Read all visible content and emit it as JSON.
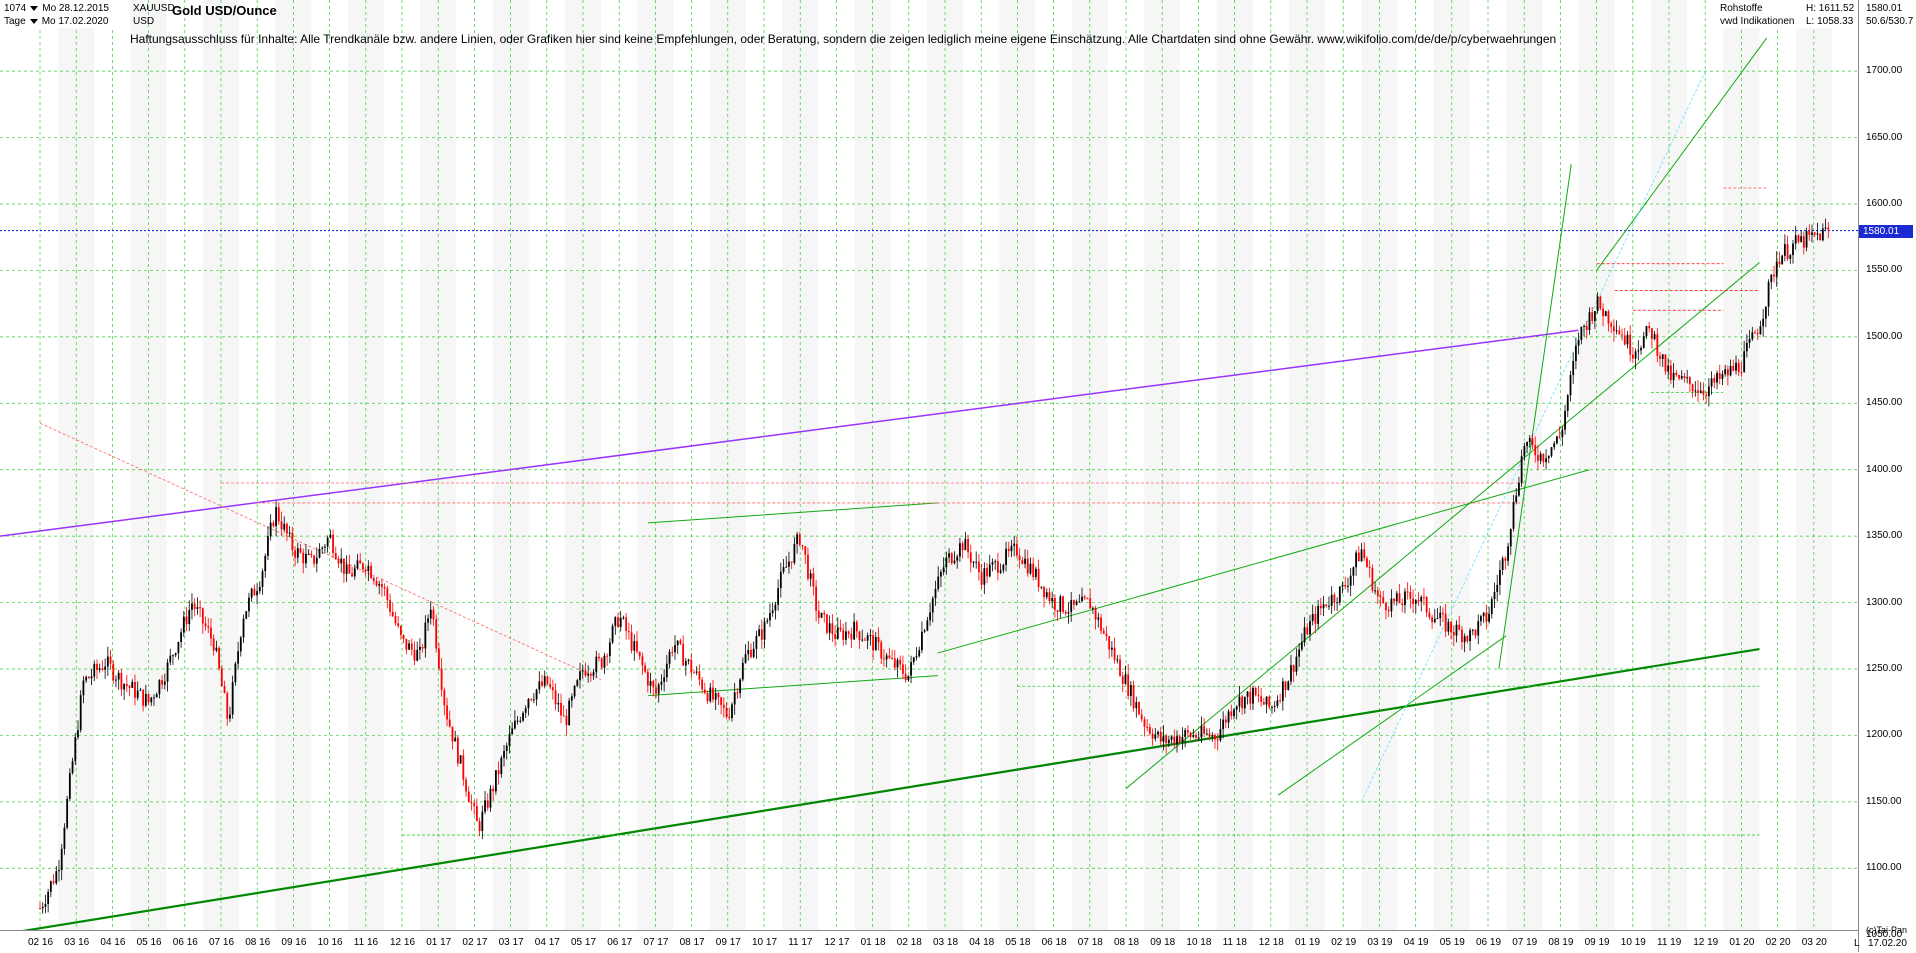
{
  "header": {
    "bars_count": "1074",
    "start_date": "Mo 28.12.2015",
    "period": "Tage",
    "end_date": "Mo 17.02.2020",
    "symbol": "XAUUSD",
    "currency": "USD",
    "title": "Gold USD/Ounce",
    "category": "Rohstoffe",
    "source": "vwd Indikationen",
    "high_label": "H: 1611.52",
    "low_label": "L: 1058.33",
    "last_value": "1580.01",
    "ma_values": "50.6/530.7"
  },
  "disclaimer": "Haftungsausschluss für Inhalte: Alle Trendkanäle bzw. andere Linien, oder Grafiken hier sind keine Empfehlungen, oder Beratung, sondern die zeigen lediglich meine eigene Einschätzung. Alle Chartdaten sind ohne Gewähr.  www.wikifolio.com/de/de/p/cyberwaehrungen",
  "footer": {
    "copyright": "(c)Tai-Pan",
    "mode": "L",
    "date": "17.02.20"
  },
  "colors": {
    "up": "#000000",
    "down": "#ff0000",
    "grid": "#33cc33",
    "current_line": "#1c2bd1",
    "purple": "#9933ff",
    "green_dark": "#008800",
    "cyan": "#66ddff",
    "orange": "#ff8800"
  },
  "chart_data": {
    "type": "candlestick",
    "title": "Gold USD/Ounce",
    "ylabel": "USD",
    "ylim": [
      1040,
      1740
    ],
    "y_ticks": [
      1050,
      1100,
      1150,
      1200,
      1250,
      1300,
      1350,
      1400,
      1450,
      1500,
      1550,
      1600,
      1650,
      1700
    ],
    "x_ticks": [
      "02 16",
      "03 16",
      "04 16",
      "05 16",
      "06 16",
      "07 16",
      "08 16",
      "09 16",
      "10 16",
      "11 16",
      "12 16",
      "01 17",
      "02 17",
      "03 17",
      "04 17",
      "05 17",
      "06 17",
      "07 17",
      "08 17",
      "09 17",
      "10 17",
      "11 17",
      "12 17",
      "01 18",
      "02 18",
      "03 18",
      "04 18",
      "05 18",
      "06 18",
      "07 18",
      "08 18",
      "09 18",
      "10 18",
      "11 18",
      "12 18",
      "01 19",
      "02 19",
      "03 19",
      "04 19",
      "05 19",
      "06 19",
      "07 19",
      "08 19",
      "09 19",
      "10 19",
      "11 19",
      "12 19",
      "01 20",
      "02 20",
      "03 20"
    ],
    "current_price": 1580.01,
    "price_path": [
      [
        0,
        1070
      ],
      [
        0.5,
        1100
      ],
      [
        1.2,
        1240
      ],
      [
        1.8,
        1255
      ],
      [
        2.3,
        1240
      ],
      [
        3,
        1225
      ],
      [
        3.5,
        1250
      ],
      [
        4.2,
        1300
      ],
      [
        4.8,
        1270
      ],
      [
        5.2,
        1210
      ],
      [
        5.6,
        1290
      ],
      [
        6.1,
        1320
      ],
      [
        6.5,
        1370
      ],
      [
        7,
        1340
      ],
      [
        7.5,
        1330
      ],
      [
        8,
        1350
      ],
      [
        8.5,
        1320
      ],
      [
        9,
        1330
      ],
      [
        9.5,
        1310
      ],
      [
        10,
        1270
      ],
      [
        10.5,
        1260
      ],
      [
        10.8,
        1300
      ],
      [
        11.2,
        1220
      ],
      [
        11.6,
        1180
      ],
      [
        12.1,
        1130
      ],
      [
        12.5,
        1160
      ],
      [
        13,
        1200
      ],
      [
        13.5,
        1230
      ],
      [
        14,
        1240
      ],
      [
        14.5,
        1210
      ],
      [
        15,
        1250
      ],
      [
        15.5,
        1255
      ],
      [
        16,
        1290
      ],
      [
        16.5,
        1260
      ],
      [
        17,
        1230
      ],
      [
        17.5,
        1270
      ],
      [
        18,
        1250
      ],
      [
        18.5,
        1230
      ],
      [
        19,
        1215
      ],
      [
        19.5,
        1260
      ],
      [
        20,
        1280
      ],
      [
        20.5,
        1320
      ],
      [
        21,
        1350
      ],
      [
        21.5,
        1290
      ],
      [
        22,
        1275
      ],
      [
        22.5,
        1280
      ],
      [
        23,
        1270
      ],
      [
        23.5,
        1255
      ],
      [
        24,
        1245
      ],
      [
        24.5,
        1290
      ],
      [
        25,
        1330
      ],
      [
        25.5,
        1345
      ],
      [
        26,
        1320
      ],
      [
        26.5,
        1330
      ],
      [
        27,
        1340
      ],
      [
        27.5,
        1320
      ],
      [
        28,
        1300
      ],
      [
        28.5,
        1295
      ],
      [
        29,
        1300
      ],
      [
        29.5,
        1270
      ],
      [
        30,
        1240
      ],
      [
        30.5,
        1210
      ],
      [
        31,
        1195
      ],
      [
        31.5,
        1200
      ],
      [
        32,
        1200
      ],
      [
        32.5,
        1200
      ],
      [
        33,
        1225
      ],
      [
        33.5,
        1230
      ],
      [
        34,
        1220
      ],
      [
        34.5,
        1245
      ],
      [
        35,
        1280
      ],
      [
        35.5,
        1300
      ],
      [
        36,
        1310
      ],
      [
        36.5,
        1340
      ],
      [
        37,
        1300
      ],
      [
        37.5,
        1300
      ],
      [
        38,
        1305
      ],
      [
        38.5,
        1290
      ],
      [
        39,
        1280
      ],
      [
        39.5,
        1275
      ],
      [
        40,
        1290
      ],
      [
        40.5,
        1340
      ],
      [
        41,
        1420
      ],
      [
        41.5,
        1410
      ],
      [
        42,
        1425
      ],
      [
        42.5,
        1500
      ],
      [
        43,
        1525
      ],
      [
        43.5,
        1510
      ],
      [
        44,
        1490
      ],
      [
        44.5,
        1505
      ],
      [
        45,
        1470
      ],
      [
        45.5,
        1465
      ],
      [
        46,
        1460
      ],
      [
        46.5,
        1470
      ],
      [
        47,
        1480
      ],
      [
        47.5,
        1510
      ],
      [
        48,
        1560
      ],
      [
        48.5,
        1570
      ],
      [
        49,
        1575
      ],
      [
        49.4,
        1580
      ]
    ],
    "range_high": 1611.52,
    "range_low": 1058.33,
    "n_bars": 1074
  }
}
